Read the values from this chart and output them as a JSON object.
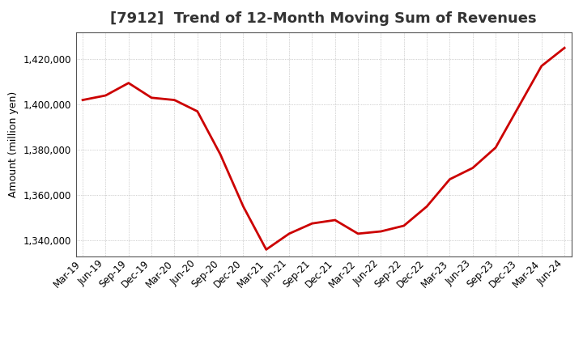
{
  "title": "[7912]  Trend of 12-Month Moving Sum of Revenues",
  "ylabel": "Amount (million yen)",
  "line_color": "#cc0000",
  "background_color": "#ffffff",
  "plot_bg_color": "#ffffff",
  "grid_color": "#aaaaaa",
  "ylim": [
    1333000,
    1432000
  ],
  "yticks": [
    1340000,
    1360000,
    1380000,
    1400000,
    1420000
  ],
  "x_labels": [
    "Mar-19",
    "Jun-19",
    "Sep-19",
    "Dec-19",
    "Mar-20",
    "Jun-20",
    "Sep-20",
    "Dec-20",
    "Mar-21",
    "Jun-21",
    "Sep-21",
    "Dec-21",
    "Mar-22",
    "Jun-22",
    "Sep-22",
    "Dec-22",
    "Mar-23",
    "Jun-23",
    "Sep-23",
    "Dec-23",
    "Mar-24",
    "Jun-24"
  ],
  "values": [
    1402000,
    1404000,
    1409500,
    1403000,
    1402000,
    1397000,
    1378000,
    1355000,
    1336000,
    1343000,
    1347500,
    1349000,
    1343000,
    1344000,
    1346500,
    1355000,
    1367000,
    1372000,
    1381000,
    1399000,
    1417000,
    1425000
  ],
  "title_fontsize": 13,
  "ylabel_fontsize": 9,
  "tick_fontsize": 8.5,
  "line_width": 2.0
}
